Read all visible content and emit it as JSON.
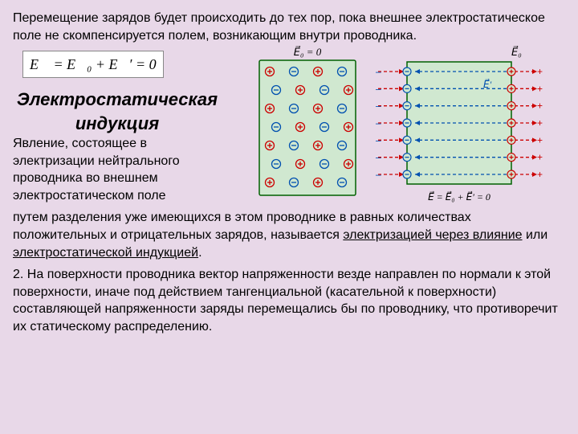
{
  "text": {
    "p1": "Перемещение зарядов будет происходить до тех пор, пока внешнее электростатическое поле не скомпенсируется полем, возникающим внутри проводника.",
    "formula_E": "E⃗ = E⃗₀ + E⃗′ = 0",
    "heading1": "Электростатическая",
    "heading2": "индукция",
    "p2a": "Явление, состоящее в электризации нейтрального проводника во внешнем электростатическом поле",
    "p2b": "путем разделения уже имеющихся в этом проводнике в равных количествах положительных и отрицательных зарядов, называется ",
    "p2u1": "электризацией через влияние",
    "p2mid": " или ",
    "p2u2": "электростатической индукцией",
    "p2end": ".",
    "p3": "2. На поверхности проводника вектор напряженности везде направлен по нормали к этой поверхности, иначе под действием тангенциальной (касательной к поверхности) составляющей напряженности заряды перемещались бы по проводнику, что противоречит их статическому распределению."
  },
  "fig1": {
    "label": "E⃗₀ = 0",
    "bg": "#d0e8d0",
    "border": "#006000",
    "plus_color": "#cc0000",
    "minus_color": "#0050b0",
    "rows": 7,
    "cols": 4
  },
  "fig2": {
    "label_top": "E⃗₀",
    "label_mid": "E⃗′",
    "label_bot": "E⃗ = E⃗₀ + E⃗′ = 0",
    "bg": "#d0e8d0",
    "border": "#006000",
    "red": "#cc0000",
    "blue": "#0050b0",
    "lines": 7
  }
}
